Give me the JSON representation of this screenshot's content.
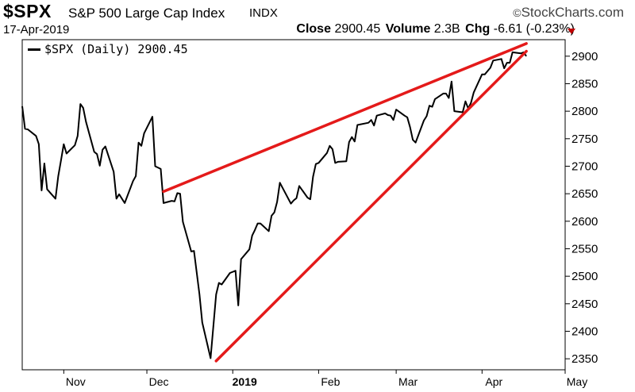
{
  "header": {
    "symbol": "$SPX",
    "name": "S&P 500 Large Cap Index",
    "exchange": "INDX",
    "brand": "StockCharts.com",
    "brand_mark": "©",
    "date": "17-Apr-2019",
    "close_label": "Close",
    "close_value": "2900.45",
    "volume_label": "Volume",
    "volume_value": "2.3B",
    "chg_label": "Chg",
    "chg_value": "-6.61 (-0.23%)"
  },
  "colors": {
    "price": "#000000",
    "trend": "#e41a1a",
    "down_arrow": "#c00000"
  },
  "chart_data": {
    "type": "line",
    "legend": "$SPX (Daily) 2900.45",
    "legend_position": "top-left",
    "ylim": [
      2330,
      2930
    ],
    "y_ticks": [
      2350,
      2400,
      2450,
      2500,
      2550,
      2600,
      2650,
      2700,
      2750,
      2800,
      2850,
      2900
    ],
    "x_labels": [
      "Nov",
      "Dec",
      "2019",
      "Feb",
      "Mar",
      "Apr",
      "May"
    ],
    "x_label_dates": [
      "2018-11-01",
      "2018-12-01",
      "2019-01-01",
      "2019-02-01",
      "2019-03-01",
      "2019-04-01",
      "2019-05-01"
    ],
    "xlim": [
      "2018-10-17",
      "2019-05-01"
    ],
    "grid": false,
    "series": [
      {
        "name": "$SPX (Daily)",
        "x": [
          "2018-10-17",
          "2018-10-18",
          "2018-10-19",
          "2018-10-22",
          "2018-10-23",
          "2018-10-24",
          "2018-10-25",
          "2018-10-26",
          "2018-10-29",
          "2018-10-30",
          "2018-10-31",
          "2018-11-01",
          "2018-11-02",
          "2018-11-05",
          "2018-11-06",
          "2018-11-07",
          "2018-11-08",
          "2018-11-09",
          "2018-11-12",
          "2018-11-13",
          "2018-11-14",
          "2018-11-15",
          "2018-11-16",
          "2018-11-19",
          "2018-11-20",
          "2018-11-21",
          "2018-11-23",
          "2018-11-26",
          "2018-11-27",
          "2018-11-28",
          "2018-11-29",
          "2018-11-30",
          "2018-12-03",
          "2018-12-04",
          "2018-12-06",
          "2018-12-07",
          "2018-12-10",
          "2018-12-11",
          "2018-12-12",
          "2018-12-13",
          "2018-12-14",
          "2018-12-17",
          "2018-12-18",
          "2018-12-19",
          "2018-12-20",
          "2018-12-21",
          "2018-12-24",
          "2018-12-26",
          "2018-12-27",
          "2018-12-28",
          "2018-12-31",
          "2019-01-02",
          "2019-01-03",
          "2019-01-04",
          "2019-01-07",
          "2019-01-08",
          "2019-01-09",
          "2019-01-10",
          "2019-01-11",
          "2019-01-14",
          "2019-01-15",
          "2019-01-16",
          "2019-01-17",
          "2019-01-18",
          "2019-01-22",
          "2019-01-23",
          "2019-01-24",
          "2019-01-25",
          "2019-01-28",
          "2019-01-29",
          "2019-01-30",
          "2019-01-31",
          "2019-02-01",
          "2019-02-04",
          "2019-02-05",
          "2019-02-06",
          "2019-02-07",
          "2019-02-08",
          "2019-02-11",
          "2019-02-12",
          "2019-02-13",
          "2019-02-14",
          "2019-02-15",
          "2019-02-19",
          "2019-02-20",
          "2019-02-21",
          "2019-02-22",
          "2019-02-25",
          "2019-02-26",
          "2019-02-27",
          "2019-02-28",
          "2019-03-01",
          "2019-03-04",
          "2019-03-05",
          "2019-03-06",
          "2019-03-07",
          "2019-03-08",
          "2019-03-11",
          "2019-03-12",
          "2019-03-13",
          "2019-03-14",
          "2019-03-15",
          "2019-03-18",
          "2019-03-19",
          "2019-03-20",
          "2019-03-21",
          "2019-03-22",
          "2019-03-25",
          "2019-03-26",
          "2019-03-27",
          "2019-03-28",
          "2019-03-29",
          "2019-04-01",
          "2019-04-02",
          "2019-04-03",
          "2019-04-04",
          "2019-04-05",
          "2019-04-08",
          "2019-04-09",
          "2019-04-10",
          "2019-04-11",
          "2019-04-12",
          "2019-04-15",
          "2019-04-16",
          "2019-04-17"
        ],
        "values": [
          2809,
          2768,
          2767,
          2755,
          2740,
          2656,
          2705,
          2658,
          2641,
          2682,
          2711,
          2740,
          2723,
          2738,
          2755,
          2813,
          2806,
          2781,
          2726,
          2722,
          2701,
          2730,
          2736,
          2690,
          2641,
          2649,
          2633,
          2673,
          2682,
          2743,
          2737,
          2760,
          2790,
          2700,
          2695,
          2633,
          2637,
          2636,
          2651,
          2650,
          2599,
          2545,
          2546,
          2506,
          2467,
          2416,
          2351,
          2467,
          2488,
          2485,
          2506,
          2510,
          2447,
          2531,
          2549,
          2574,
          2584,
          2596,
          2596,
          2582,
          2610,
          2616,
          2635,
          2670,
          2632,
          2638,
          2642,
          2664,
          2643,
          2640,
          2681,
          2704,
          2706,
          2724,
          2737,
          2731,
          2706,
          2708,
          2709,
          2744,
          2753,
          2745,
          2775,
          2779,
          2784,
          2774,
          2792,
          2796,
          2793,
          2792,
          2784,
          2803,
          2792,
          2789,
          2771,
          2748,
          2743,
          2783,
          2791,
          2810,
          2808,
          2822,
          2832,
          2832,
          2824,
          2854,
          2800,
          2798,
          2818,
          2805,
          2815,
          2834,
          2867,
          2867,
          2873,
          2879,
          2892,
          2895,
          2878,
          2888,
          2888,
          2907,
          2905,
          2907,
          2900
        ]
      }
    ],
    "trendlines": [
      {
        "name": "upper",
        "from": [
          "2018-12-07",
          2654
        ],
        "to": [
          "2019-04-17",
          2923
        ]
      },
      {
        "name": "lower",
        "from": [
          "2018-12-26",
          2346
        ],
        "to": [
          "2019-04-17",
          2909
        ]
      }
    ]
  }
}
